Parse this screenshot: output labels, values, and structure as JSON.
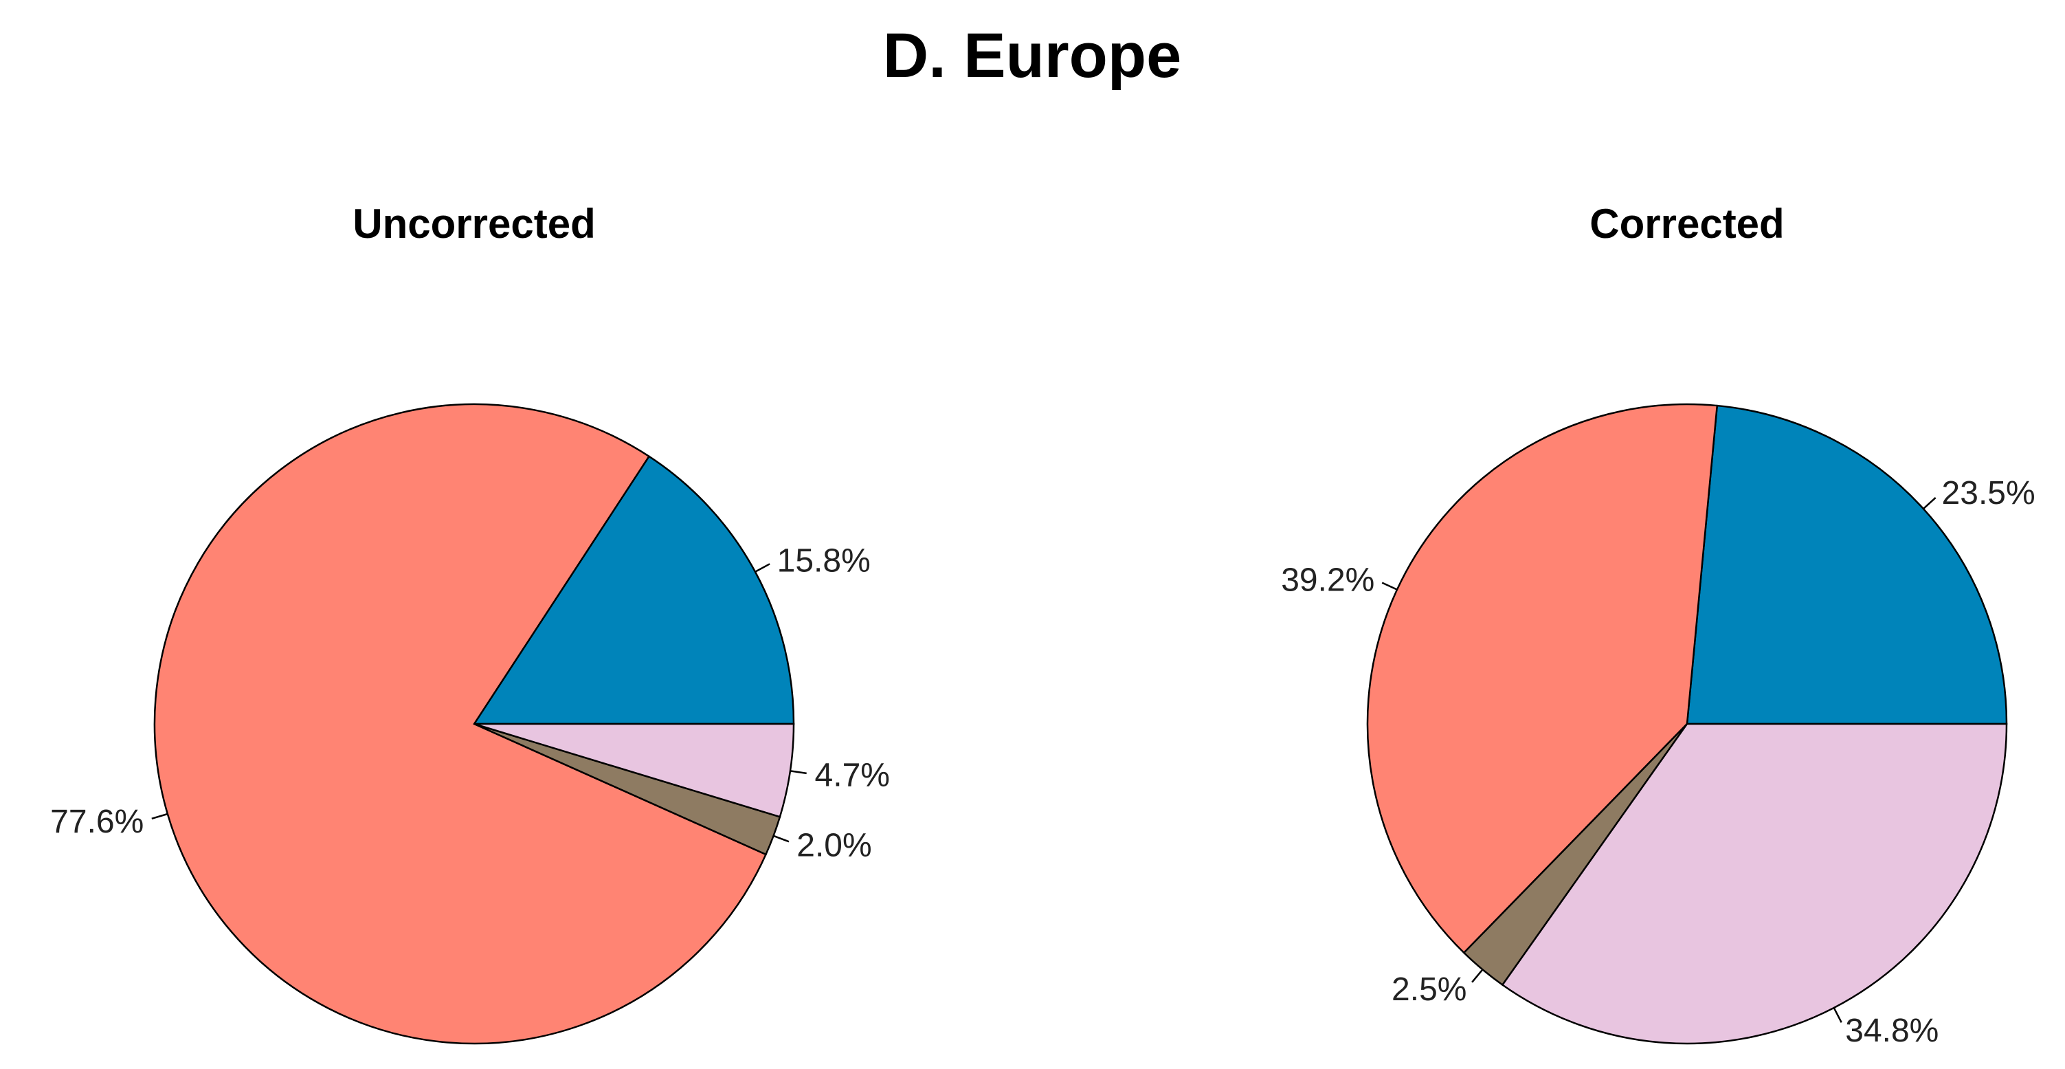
{
  "title": "D. Europe",
  "chart_data": [
    {
      "type": "pie",
      "title": "Uncorrected",
      "slices": [
        {
          "label": "15.8%",
          "value": 15.8,
          "color": "#0084BA"
        },
        {
          "label": "77.6%",
          "value": 77.6,
          "color": "#FF8473"
        },
        {
          "label": "2.0%",
          "value": 2.0,
          "color": "#8E7B62"
        },
        {
          "label": "4.7%",
          "value": 4.7,
          "color": "#E8C5E0"
        }
      ]
    },
    {
      "type": "pie",
      "title": "Corrected",
      "slices": [
        {
          "label": "23.5%",
          "value": 23.5,
          "color": "#0084BA"
        },
        {
          "label": "39.2%",
          "value": 39.2,
          "color": "#FF8473"
        },
        {
          "label": "2.5%",
          "value": 2.5,
          "color": "#8E7B62"
        },
        {
          "label": "34.8%",
          "value": 34.8,
          "color": "#E8C5E0"
        }
      ]
    }
  ]
}
